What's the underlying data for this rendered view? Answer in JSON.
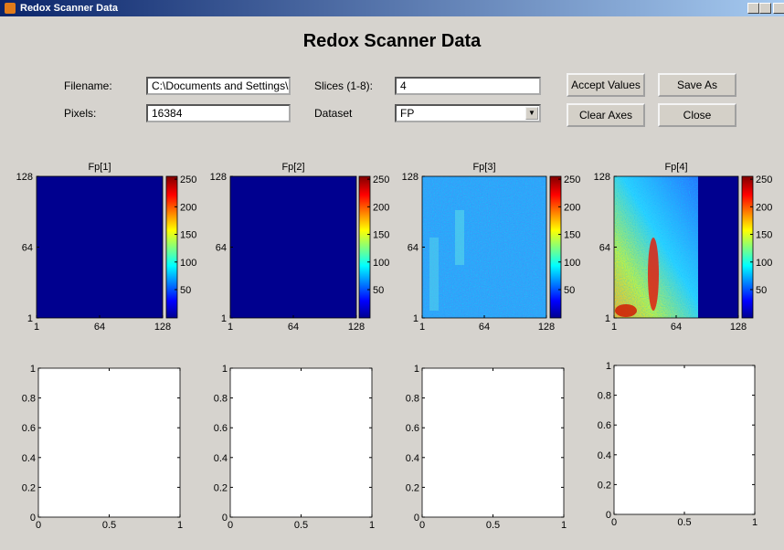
{
  "window": {
    "title": "Redox Scanner Data"
  },
  "header": {
    "title": "Redox Scanner Data"
  },
  "form": {
    "filename": {
      "label": "Filename:",
      "value": "C:\\Documents and Settings\\"
    },
    "pixels": {
      "label": "Pixels:",
      "value": "16384"
    },
    "slices": {
      "label": "Slices (1-8):",
      "value": "4"
    },
    "dataset": {
      "label": "Dataset",
      "value": "FP"
    }
  },
  "buttons": {
    "accept": "Accept Values",
    "save_as": "Save As",
    "clear_axes": "Clear Axes",
    "close": "Close"
  },
  "image_plots": [
    {
      "title": "Fp[1]",
      "xticks": [
        "1",
        "64",
        "128"
      ],
      "yticks": [
        "128",
        "64",
        "1"
      ],
      "colorbar_ticks": [
        "250",
        "200",
        "150",
        "100",
        "50"
      ]
    },
    {
      "title": "Fp[2]",
      "xticks": [
        "1",
        "64",
        "128"
      ],
      "yticks": [
        "128",
        "64",
        "1"
      ],
      "colorbar_ticks": [
        "250",
        "200",
        "150",
        "100",
        "50"
      ]
    },
    {
      "title": "Fp[3]",
      "xticks": [
        "1",
        "64",
        "128"
      ],
      "yticks": [
        "128",
        "64",
        "1"
      ],
      "colorbar_ticks": [
        "250",
        "200",
        "150",
        "100",
        "50"
      ]
    },
    {
      "title": "Fp[4]",
      "xticks": [
        "1",
        "64",
        "128"
      ],
      "yticks": [
        "128",
        "64",
        "1"
      ],
      "colorbar_ticks": [
        "250",
        "200",
        "150",
        "100",
        "50"
      ]
    }
  ],
  "line_plots": [
    {
      "xticks": [
        "0",
        "0.5",
        "1"
      ],
      "yticks": [
        "1",
        "0.8",
        "0.6",
        "0.4",
        "0.2",
        "0"
      ]
    },
    {
      "xticks": [
        "0",
        "0.5",
        "1"
      ],
      "yticks": [
        "1",
        "0.8",
        "0.6",
        "0.4",
        "0.2",
        "0"
      ]
    },
    {
      "xticks": [
        "0",
        "0.5",
        "1"
      ],
      "yticks": [
        "1",
        "0.8",
        "0.6",
        "0.4",
        "0.2",
        "0"
      ]
    },
    {
      "xticks": [
        "0",
        "0.5",
        "1"
      ],
      "yticks": [
        "1",
        "0.8",
        "0.6",
        "0.4",
        "0.2",
        "0"
      ]
    }
  ]
}
